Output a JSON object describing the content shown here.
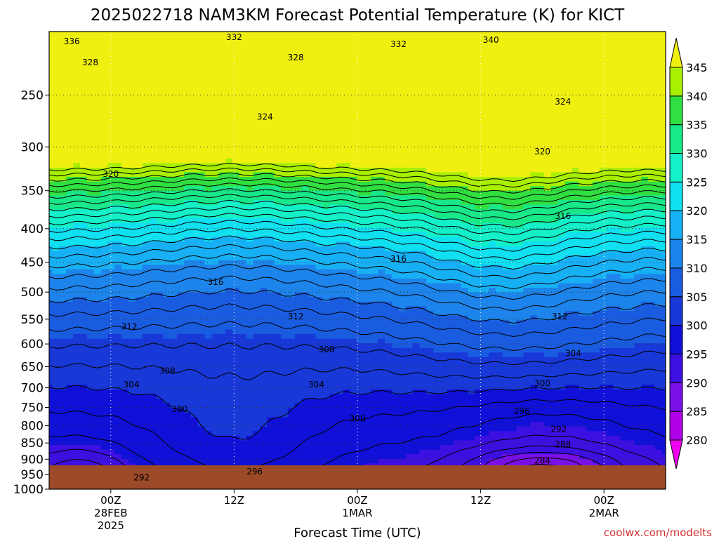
{
  "chart_data": {
    "type": "heatmap",
    "title": "2025022718 NAM3KM Forecast Potential Temperature (K) for KICT",
    "xlabel": "Forecast Time (UTC)",
    "ylabel": "",
    "credit": "coolwx.com/modelts",
    "y_axis": {
      "scale": "log",
      "reversed": true,
      "range": [
        200,
        1000
      ],
      "ticks": [
        250,
        300,
        350,
        400,
        450,
        500,
        550,
        600,
        650,
        700,
        750,
        800,
        850,
        900,
        950,
        1000
      ]
    },
    "x_axis": {
      "range_hours": [
        0,
        60
      ],
      "ticks": [
        {
          "hour": 6,
          "lines": [
            "00Z",
            "28FEB",
            "2025"
          ]
        },
        {
          "hour": 18,
          "lines": [
            "12Z"
          ]
        },
        {
          "hour": 30,
          "lines": [
            "00Z",
            "1MAR"
          ]
        },
        {
          "hour": 42,
          "lines": [
            "12Z"
          ]
        },
        {
          "hour": 54,
          "lines": [
            "00Z",
            "2MAR"
          ]
        }
      ]
    },
    "colorbar": {
      "levels": [
        280,
        285,
        290,
        295,
        300,
        305,
        310,
        315,
        320,
        325,
        330,
        335,
        340,
        345
      ],
      "colors": [
        "#ee00ee",
        "#b000e8",
        "#7a10e8",
        "#3c10e0",
        "#1010d8",
        "#1838d8",
        "#1a5ce0",
        "#1c84ea",
        "#18b0f4",
        "#10e0f0",
        "#14f0c8",
        "#18e888",
        "#30e040",
        "#a8f000",
        "#f0f010"
      ]
    },
    "grid": true,
    "contour_labels": [
      {
        "value": 336,
        "hour": 2.2,
        "p": 207
      },
      {
        "value": 332,
        "hour": 18,
        "p": 204
      },
      {
        "value": 332,
        "hour": 34,
        "p": 209
      },
      {
        "value": 340,
        "hour": 43,
        "p": 206
      },
      {
        "value": 328,
        "hour": 4,
        "p": 223
      },
      {
        "value": 328,
        "hour": 24,
        "p": 219
      },
      {
        "value": 324,
        "hour": 21,
        "p": 270
      },
      {
        "value": 324,
        "hour": 50,
        "p": 256
      },
      {
        "value": 320,
        "hour": 48,
        "p": 305
      },
      {
        "value": 320,
        "hour": 6,
        "p": 330
      },
      {
        "value": 316,
        "hour": 50,
        "p": 383
      },
      {
        "value": 316,
        "hour": 34,
        "p": 445
      },
      {
        "value": 316,
        "hour": 16.2,
        "p": 483
      },
      {
        "value": 312,
        "hour": 7.8,
        "p": 565
      },
      {
        "value": 312,
        "hour": 24,
        "p": 545
      },
      {
        "value": 312,
        "hour": 49.7,
        "p": 545
      },
      {
        "value": 308,
        "hour": 27,
        "p": 612
      },
      {
        "value": 308,
        "hour": 11.5,
        "p": 660
      },
      {
        "value": 304,
        "hour": 8,
        "p": 692
      },
      {
        "value": 304,
        "hour": 26,
        "p": 692
      },
      {
        "value": 304,
        "hour": 51,
        "p": 620
      },
      {
        "value": 300,
        "hour": 12.7,
        "p": 755
      },
      {
        "value": 300,
        "hour": 30,
        "p": 780
      },
      {
        "value": 300,
        "hour": 48,
        "p": 690
      },
      {
        "value": 296,
        "hour": 46,
        "p": 760
      },
      {
        "value": 292,
        "hour": 49.6,
        "p": 810
      },
      {
        "value": 288,
        "hour": 50,
        "p": 855
      },
      {
        "value": 284,
        "hour": 48,
        "p": 905
      },
      {
        "value": 296,
        "hour": 20,
        "p": 940
      },
      {
        "value": 292,
        "hour": 9,
        "p": 960
      }
    ],
    "terrain_color": "#9c4a28"
  }
}
